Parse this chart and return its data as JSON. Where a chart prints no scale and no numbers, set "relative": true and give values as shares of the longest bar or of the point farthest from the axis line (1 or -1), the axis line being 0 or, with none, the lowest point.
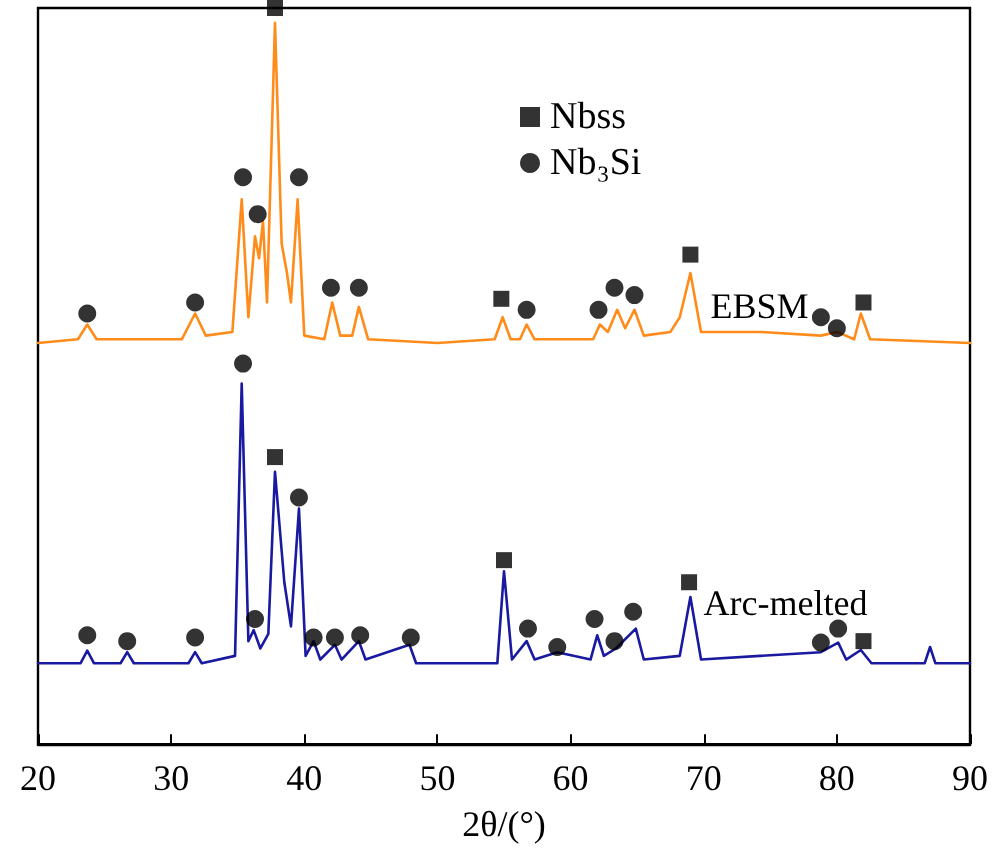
{
  "chart_data": {
    "type": "line",
    "relative": true,
    "xlabel": "2θ/(°)",
    "xlim": [
      20,
      90
    ],
    "xticks": [
      20,
      30,
      40,
      50,
      60,
      70,
      80,
      90
    ],
    "grid": false,
    "legend": "top",
    "line_style": "solid",
    "marker": "none",
    "series": [
      {
        "name": "EBSM",
        "color": "#ff8c1a",
        "x": [
          20,
          23.0,
          23.7,
          24.4,
          30.8,
          31.8,
          32.6,
          34.6,
          35.3,
          35.8,
          36.3,
          36.6,
          36.9,
          37.2,
          37.8,
          38.3,
          38.7,
          39.0,
          39.5,
          40.0,
          41.5,
          42.1,
          42.7,
          43.6,
          44.1,
          44.8,
          50,
          54.3,
          54.9,
          55.5,
          56.2,
          56.7,
          57.3,
          61.7,
          62.2,
          62.8,
          63.5,
          64.1,
          64.8,
          65.5,
          67.5,
          68.2,
          69.0,
          69.8,
          72.3,
          74.3,
          78.8,
          80.0,
          81.3,
          81.8,
          82.5,
          90
        ],
        "values": [
          0.545,
          0.55,
          0.57,
          0.55,
          0.55,
          0.585,
          0.555,
          0.56,
          0.74,
          0.58,
          0.69,
          0.66,
          0.71,
          0.6,
          0.98,
          0.68,
          0.64,
          0.6,
          0.74,
          0.555,
          0.55,
          0.6,
          0.555,
          0.555,
          0.594,
          0.55,
          0.545,
          0.55,
          0.58,
          0.55,
          0.55,
          0.57,
          0.55,
          0.55,
          0.57,
          0.56,
          0.59,
          0.565,
          0.59,
          0.555,
          0.56,
          0.58,
          0.64,
          0.56,
          0.56,
          0.56,
          0.555,
          0.56,
          0.55,
          0.585,
          0.55,
          0.545
        ]
      },
      {
        "name": "Arc-melted",
        "color": "#1a1aa0",
        "x": [
          20,
          23.2,
          23.7,
          24.2,
          26.2,
          26.7,
          27.2,
          31.3,
          31.8,
          32.3,
          34.8,
          35.3,
          35.8,
          36.2,
          36.7,
          37.3,
          37.8,
          38.5,
          39.0,
          39.6,
          40.1,
          40.7,
          41.2,
          42.3,
          42.8,
          44.1,
          44.6,
          47.9,
          48.4,
          54.5,
          55.0,
          55.6,
          56.7,
          57.3,
          59.0,
          61.5,
          62.0,
          62.5,
          63.4,
          64.9,
          65.5,
          68.2,
          69.0,
          69.8,
          78.8,
          80.1,
          80.7,
          81.8,
          82.6,
          86.6,
          87.0,
          87.4,
          90
        ],
        "values": [
          0.11,
          0.11,
          0.127,
          0.11,
          0.11,
          0.125,
          0.11,
          0.11,
          0.125,
          0.11,
          0.12,
          0.49,
          0.14,
          0.155,
          0.13,
          0.15,
          0.37,
          0.22,
          0.16,
          0.32,
          0.12,
          0.14,
          0.115,
          0.135,
          0.115,
          0.14,
          0.115,
          0.135,
          0.11,
          0.11,
          0.235,
          0.115,
          0.14,
          0.115,
          0.125,
          0.115,
          0.148,
          0.12,
          0.13,
          0.157,
          0.115,
          0.12,
          0.2,
          0.115,
          0.125,
          0.138,
          0.115,
          0.128,
          0.11,
          0.11,
          0.132,
          0.11,
          0.11
        ]
      },
      {
        "name": "Nbss",
        "type": "scatter",
        "marker": "square",
        "color": "#000000",
        "x": [
          37.8,
          54.8,
          69.0,
          82.0,
          37.8,
          55.0,
          68.9,
          82.0
        ],
        "values": [
          1.0,
          0.605,
          0.665,
          0.6,
          0.39,
          0.25,
          0.22,
          0.14
        ]
      },
      {
        "name": "Nb₃Si",
        "type": "scatter",
        "marker": "circle",
        "color": "#000000",
        "x": [
          23.7,
          31.8,
          35.4,
          36.5,
          39.6,
          42.0,
          44.1,
          56.7,
          62.1,
          63.3,
          64.8,
          78.8,
          80.0,
          23.7,
          26.7,
          31.8,
          35.4,
          36.3,
          39.6,
          40.7,
          42.3,
          44.2,
          48.0,
          56.8,
          59.0,
          61.8,
          63.3,
          64.7,
          78.8,
          80.1
        ],
        "values": [
          0.585,
          0.6,
          0.77,
          0.72,
          0.77,
          0.62,
          0.62,
          0.59,
          0.59,
          0.62,
          0.61,
          0.58,
          0.565,
          0.148,
          0.14,
          0.145,
          0.517,
          0.17,
          0.335,
          0.145,
          0.145,
          0.148,
          0.145,
          0.157,
          0.132,
          0.17,
          0.14,
          0.18,
          0.138,
          0.157
        ]
      }
    ]
  }
}
